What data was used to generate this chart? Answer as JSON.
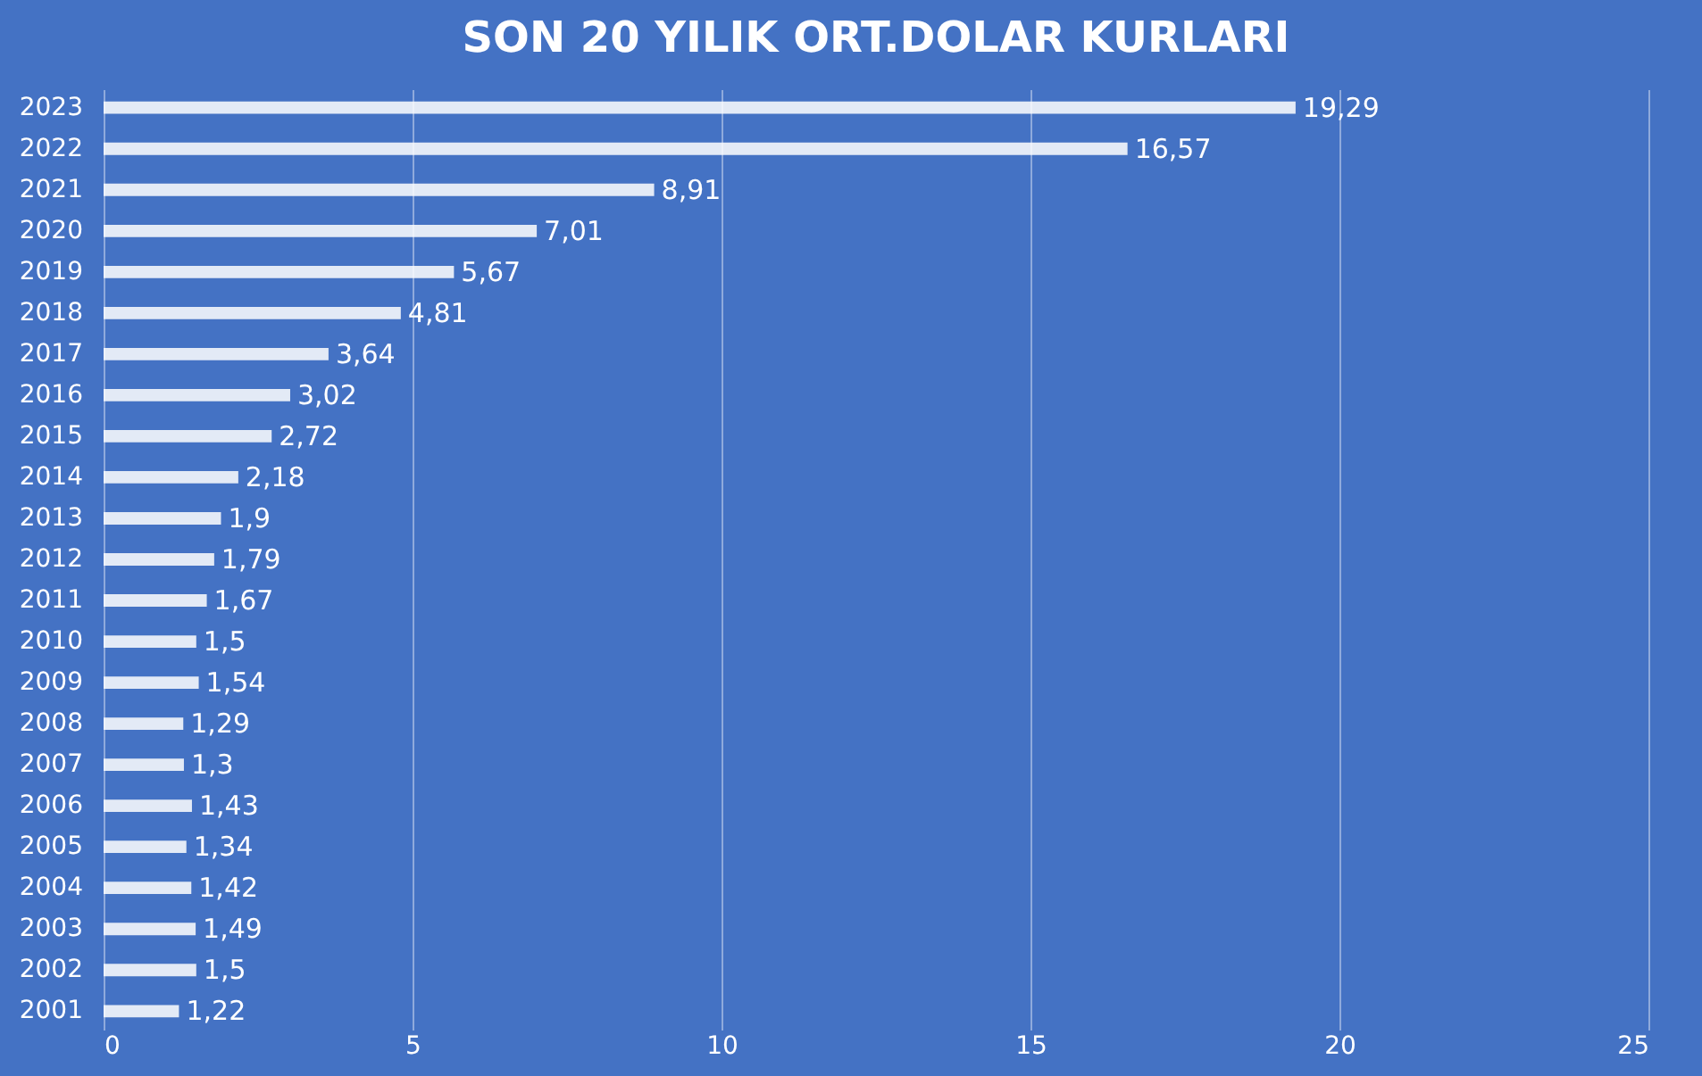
{
  "chart_data": {
    "type": "bar",
    "orientation": "horizontal",
    "title": "SON 20 YILIK ORT.DOLAR KURLARI",
    "categories": [
      "2023",
      "2022",
      "2021",
      "2020",
      "2019",
      "2018",
      "2017",
      "2016",
      "2015",
      "2014",
      "2013",
      "2012",
      "2011",
      "2010",
      "2009",
      "2008",
      "2007",
      "2006",
      "2005",
      "2004",
      "2003",
      "2002",
      "2001"
    ],
    "values": [
      19.29,
      16.57,
      8.91,
      7.01,
      5.67,
      4.81,
      3.64,
      3.02,
      2.72,
      2.18,
      1.9,
      1.79,
      1.67,
      1.5,
      1.54,
      1.29,
      1.3,
      1.43,
      1.34,
      1.42,
      1.49,
      1.5,
      1.22
    ],
    "value_labels": [
      "19,29",
      "16,57",
      "8,91",
      "7,01",
      "5,67",
      "4,81",
      "3,64",
      "3,02",
      "2,72",
      "2,18",
      "1,9",
      "1,79",
      "1,67",
      "1,5",
      "1,54",
      "1,29",
      "1,3",
      "1,43",
      "1,34",
      "1,42",
      "1,49",
      "1,5",
      "1,22"
    ],
    "color": "#ffffff",
    "xlim": [
      0,
      25
    ],
    "xticks": [
      0,
      5,
      10,
      15,
      20,
      25
    ],
    "grid": "x"
  }
}
